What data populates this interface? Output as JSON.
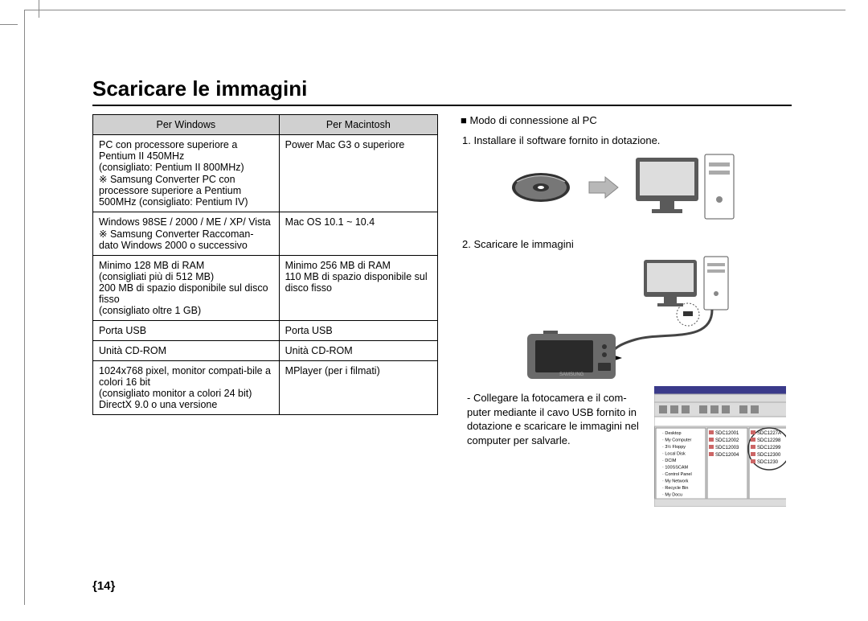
{
  "title": "Scaricare le immagini",
  "page_number": "{14}",
  "table": {
    "headers": [
      "Per Windows",
      "Per Macintosh"
    ],
    "rows": [
      [
        "PC con processore superiore a Pentium II 450MHz\n(consigliato: Pentium II 800MHz)\n※ Samsung Converter PC con processore superiore a Pentium 500MHz (consigliato: Pentium IV)",
        "Power Mac G3 o superiore"
      ],
      [
        "Windows 98SE / 2000 / ME / XP/ Vista\n※ Samsung Converter Raccoman-dato Windows 2000 o successivo",
        "Mac OS 10.1 ~ 10.4"
      ],
      [
        "Minimo 128 MB di RAM\n(consigliati più di 512 MB)\n200 MB di spazio disponibile sul disco fisso\n(consigliato oltre 1 GB)",
        "Minimo 256 MB di RAM\n110 MB di spazio disponibile sul disco fisso"
      ],
      [
        "Porta USB",
        "Porta USB"
      ],
      [
        "Unità CD-ROM",
        "Unità CD-ROM"
      ],
      [
        "1024x768 pixel, monitor compati-bile a colori 16 bit\n(consigliato monitor a colori 24 bit)\nDirectX 9.0 o una versione",
        "MPlayer (per i filmati)"
      ]
    ]
  },
  "right": {
    "heading_prefix": "■",
    "heading": "Modo di connessione al PC",
    "step1": "1. Installare il software fornito in dotazione.",
    "step2": "2. Scaricare le immagini",
    "desc": "- Collegare la fotocamera e il com-puter mediante il cavo USB fornito in dotazione e scaricare le immagini nel computer per salvarle."
  },
  "file_window": {
    "items_left": [
      "Desktop",
      "My Computer",
      "3½ Floppy",
      "Local Disk",
      "DCIM",
      "100SSCAM",
      "Control Panel",
      "My Network",
      "Recycle Bin",
      "My Docu"
    ],
    "items_mid": [
      "SDC12001",
      "SDC12002",
      "SDC12003",
      "SDC12004"
    ],
    "items_right": [
      "SDC1227A",
      "SDC12298",
      "SDC12299",
      "SDC12300",
      "SDC1230"
    ]
  },
  "colors": {
    "border": "#000000",
    "th_bg": "#d0d0d0",
    "frame": "#888888",
    "cd_dark": "#333333",
    "arrow": "#b8b8b8",
    "monitor": "#5a5a5a",
    "camera_body": "#6a6a6a",
    "camera_screen": "#2a2a2a",
    "win_bg": "#e8e8e8",
    "win_title": "#3a3a8a"
  }
}
